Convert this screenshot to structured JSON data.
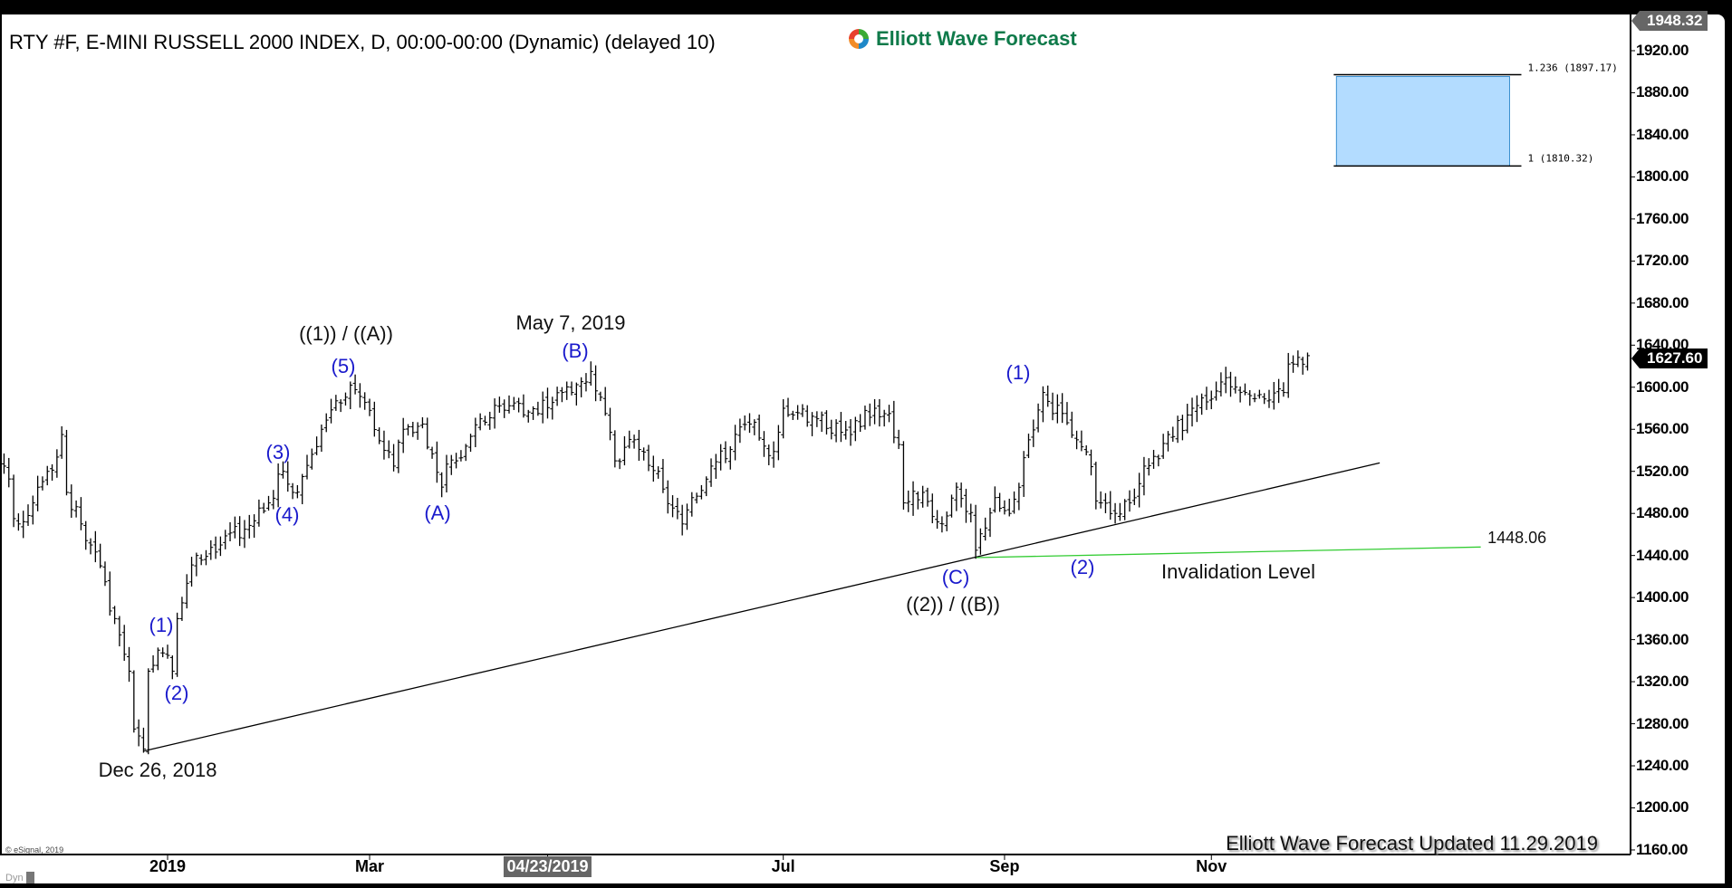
{
  "header": {
    "title": "RTY #F, E-MINI RUSSELL 2000 INDEX, D, 00:00-00:00 (Dynamic) (delayed 10)",
    "logo_text": "Elliott Wave Forecast"
  },
  "footer": {
    "updated": "Elliott Wave Forecast  Updated 11.29.2019",
    "copyright": "© eSignal, 2019",
    "dyn_label": "Dyn"
  },
  "colors": {
    "bars": "#000000",
    "trendline": "#000000",
    "invalidation_line": "#33cc33",
    "target_box": "#b3dcff",
    "target_box_border": "#3a8fd0",
    "wave_labels": "#1a1acc",
    "last_price_tag": "#000000",
    "high_tag": "#666666"
  },
  "chart_data": {
    "type": "ohlc",
    "symbol": "RTY #F",
    "y_axis": {
      "ticks": [
        "1920.00",
        "1880.00",
        "1840.00",
        "1800.00",
        "1760.00",
        "1720.00",
        "1680.00",
        "1640.00",
        "1600.00",
        "1560.00",
        "1520.00",
        "1480.00",
        "1440.00",
        "1400.00",
        "1360.00",
        "1320.00",
        "1280.00",
        "1240.00",
        "1200.00",
        "1160.00"
      ],
      "range": [
        1150,
        1950
      ],
      "high_tag": "1948.32",
      "last_price": "1627.60"
    },
    "x_axis": {
      "labels": [
        {
          "text": "2019",
          "date": "2019-01-02"
        },
        {
          "text": "Mar",
          "date": "2019-03-01"
        },
        {
          "text": "04/23/2019",
          "date": "2019-04-23",
          "highlighted": true
        },
        {
          "text": "Jul",
          "date": "2019-07-01"
        },
        {
          "text": "Sep",
          "date": "2019-09-03"
        },
        {
          "text": "Nov",
          "date": "2019-11-01"
        }
      ]
    },
    "price_path": [
      [
        "2018-11-13",
        1545
      ],
      [
        "2018-11-15",
        1525
      ],
      [
        "2018-11-20",
        1470
      ],
      [
        "2018-11-23",
        1490
      ],
      [
        "2018-11-28",
        1520
      ],
      [
        "2018-12-03",
        1555
      ],
      [
        "2018-12-04",
        1500
      ],
      [
        "2018-12-07",
        1470
      ],
      [
        "2018-12-11",
        1450
      ],
      [
        "2018-12-14",
        1415
      ],
      [
        "2018-12-18",
        1380
      ],
      [
        "2018-12-21",
        1330
      ],
      [
        "2018-12-24",
        1275
      ],
      [
        "2018-12-26",
        1256
      ],
      [
        "2018-12-27",
        1330
      ],
      [
        "2018-12-31",
        1350
      ],
      [
        "2019-01-02",
        1345
      ],
      [
        "2019-01-03",
        1330
      ],
      [
        "2019-01-04",
        1380
      ],
      [
        "2019-01-07",
        1395
      ],
      [
        "2019-01-10",
        1440
      ],
      [
        "2019-01-17",
        1450
      ],
      [
        "2019-01-24",
        1465
      ],
      [
        "2019-01-31",
        1490
      ],
      [
        "2019-02-05",
        1520
      ],
      [
        "2019-02-07",
        1500
      ],
      [
        "2019-02-11",
        1515
      ],
      [
        "2019-02-15",
        1560
      ],
      [
        "2019-02-21",
        1585
      ],
      [
        "2019-02-25",
        1602
      ],
      [
        "2019-03-01",
        1578
      ],
      [
        "2019-03-06",
        1540
      ],
      [
        "2019-03-08",
        1525
      ],
      [
        "2019-03-12",
        1560
      ],
      [
        "2019-03-18",
        1565
      ],
      [
        "2019-03-22",
        1505
      ],
      [
        "2019-03-27",
        1530
      ],
      [
        "2019-04-03",
        1570
      ],
      [
        "2019-04-12",
        1585
      ],
      [
        "2019-04-19",
        1575
      ],
      [
        "2019-04-26",
        1595
      ],
      [
        "2019-05-03",
        1605
      ],
      [
        "2019-05-06",
        1615
      ],
      [
        "2019-05-09",
        1575
      ],
      [
        "2019-05-13",
        1530
      ],
      [
        "2019-05-17",
        1550
      ],
      [
        "2019-05-24",
        1520
      ],
      [
        "2019-05-31",
        1470
      ],
      [
        "2019-06-04",
        1495
      ],
      [
        "2019-06-10",
        1525
      ],
      [
        "2019-06-20",
        1565
      ],
      [
        "2019-06-26",
        1535
      ],
      [
        "2019-07-01",
        1580
      ],
      [
        "2019-07-10",
        1570
      ],
      [
        "2019-07-19",
        1555
      ],
      [
        "2019-07-26",
        1580
      ],
      [
        "2019-07-31",
        1575
      ],
      [
        "2019-08-05",
        1490
      ],
      [
        "2019-08-09",
        1500
      ],
      [
        "2019-08-15",
        1470
      ],
      [
        "2019-08-20",
        1505
      ],
      [
        "2019-08-26",
        1445
      ],
      [
        "2019-08-30",
        1495
      ],
      [
        "2019-09-04",
        1480
      ],
      [
        "2019-09-10",
        1550
      ],
      [
        "2019-09-13",
        1595
      ],
      [
        "2019-09-19",
        1575
      ],
      [
        "2019-09-24",
        1550
      ],
      [
        "2019-10-01",
        1490
      ],
      [
        "2019-10-04",
        1480
      ],
      [
        "2019-10-09",
        1490
      ],
      [
        "2019-10-14",
        1525
      ],
      [
        "2019-10-21",
        1555
      ],
      [
        "2019-10-28",
        1580
      ],
      [
        "2019-11-05",
        1605
      ],
      [
        "2019-11-13",
        1592
      ],
      [
        "2019-11-22",
        1595
      ],
      [
        "2019-11-26",
        1622
      ],
      [
        "2019-11-29",
        1630
      ]
    ],
    "trendline": {
      "from": [
        "2018-12-26",
        1254
      ],
      "to": [
        "2019-12-20",
        1528
      ]
    },
    "invalidation": {
      "from": [
        "2019-08-26",
        1438
      ],
      "to": [
        "2020-01-20",
        1448.06
      ],
      "value_label": "1448.06",
      "label": "Invalidation Level"
    },
    "target_zone": {
      "upper": 1897.17,
      "lower": 1810.32,
      "upper_label": "1.236 (1897.17)",
      "lower_label": "1 (1810.32)",
      "from": "2019-12-09",
      "to": "2020-01-28"
    },
    "annotations": [
      {
        "id": "w1a",
        "text": "((1)) / ((A))",
        "color": "black"
      },
      {
        "id": "w5",
        "text": "(5)",
        "color": "blue"
      },
      {
        "id": "may7",
        "text": "May 7, 2019",
        "color": "black"
      },
      {
        "id": "wB",
        "text": "(B)",
        "color": "blue"
      },
      {
        "id": "w3",
        "text": "(3)",
        "color": "blue"
      },
      {
        "id": "w4",
        "text": "(4)",
        "color": "blue"
      },
      {
        "id": "wA",
        "text": "(A)",
        "color": "blue"
      },
      {
        "id": "w1",
        "text": "(1)",
        "color": "blue"
      },
      {
        "id": "w2",
        "text": "(2)",
        "color": "blue"
      },
      {
        "id": "dec26",
        "text": "Dec 26, 2018",
        "color": "black"
      },
      {
        "id": "w1r",
        "text": "(1)",
        "color": "blue"
      },
      {
        "id": "wC",
        "text": "(C)",
        "color": "blue"
      },
      {
        "id": "w2b",
        "text": "((2)) / ((B))",
        "color": "black"
      },
      {
        "id": "w2r",
        "text": "(2)",
        "color": "blue"
      }
    ]
  }
}
